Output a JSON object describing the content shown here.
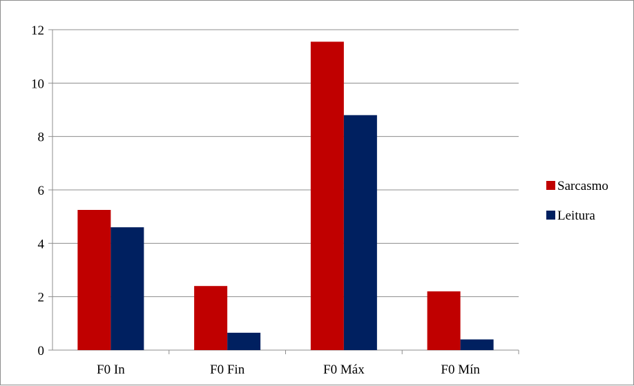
{
  "chart_data": {
    "type": "bar",
    "categories": [
      "F0 In",
      "F0 Fin",
      "F0 Máx",
      "F0 Mín"
    ],
    "series": [
      {
        "name": "Sarcasmo",
        "values": [
          5.25,
          2.4,
          11.55,
          2.2
        ],
        "color": "#c00000"
      },
      {
        "name": "Leitura",
        "values": [
          4.6,
          0.65,
          8.8,
          0.4
        ],
        "color": "#002060"
      }
    ],
    "title": "",
    "xlabel": "",
    "ylabel": "",
    "ylim": [
      0,
      12
    ],
    "yticks": [
      0,
      2,
      4,
      6,
      8,
      10,
      12
    ],
    "grid": true,
    "legend_position": "right"
  }
}
